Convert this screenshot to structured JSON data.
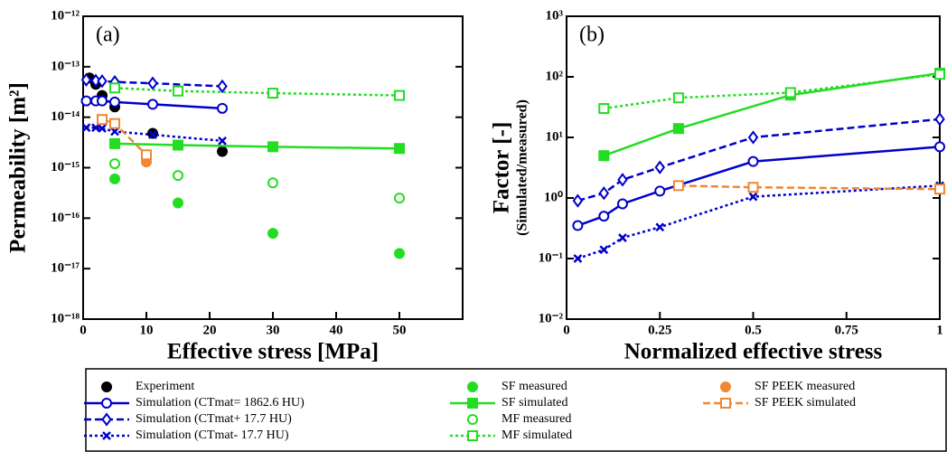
{
  "chart_data": [
    {
      "type": "line",
      "panel_label": "(a)",
      "x_label": "Effective stress [MPa]",
      "y_label": "Permeability [m²]",
      "log_y": true,
      "xlim": [
        0,
        60
      ],
      "xticks": [
        0,
        10,
        20,
        30,
        40,
        50
      ],
      "ylim": [
        1e-18,
        1e-12
      ],
      "yticks": [
        {
          "value": 1e-18,
          "label": "10⁻¹⁸"
        },
        {
          "value": 1e-17,
          "label": "10⁻¹⁷"
        },
        {
          "value": 1e-16,
          "label": "10⁻¹⁶"
        },
        {
          "value": 1e-15,
          "label": "10⁻¹⁵"
        },
        {
          "value": 1e-14,
          "label": "10⁻¹⁴"
        },
        {
          "value": 1e-13,
          "label": "10⁻¹³"
        },
        {
          "value": 1e-12,
          "label": "10⁻¹²"
        }
      ],
      "series": [
        {
          "name": "Experiment",
          "color": "#000000",
          "marker": "circle",
          "filled": true,
          "line": "none",
          "x": [
            1,
            2,
            3,
            5,
            11,
            22
          ],
          "values": [
            6e-14,
            4.5e-14,
            2.7e-14,
            1.6e-14,
            4.8e-15,
            2.1e-15
          ]
        },
        {
          "name": "Simulation (CTmat= 1862.6 HU)",
          "color": "#0000cc",
          "marker": "circle",
          "filled": false,
          "line": "solid",
          "x": [
            0.5,
            2,
            3,
            5,
            11,
            22
          ],
          "values": [
            2.1e-14,
            2.1e-14,
            2.1e-14,
            2e-14,
            1.8e-14,
            1.5e-14
          ]
        },
        {
          "name": "Simulation (CTmat+ 17.7 HU)",
          "color": "#0000cc",
          "marker": "diamond",
          "filled": false,
          "line": "dashed",
          "x": [
            0.5,
            2,
            3,
            5,
            11,
            22
          ],
          "values": [
            5.5e-14,
            5.3e-14,
            5.2e-14,
            5e-14,
            4.7e-14,
            4.1e-14
          ]
        },
        {
          "name": "Simulation (CTmat- 17.7 HU)",
          "color": "#0000cc",
          "marker": "x",
          "filled": false,
          "line": "dotted",
          "x": [
            0.5,
            2,
            3,
            5,
            11,
            22
          ],
          "values": [
            6.2e-15,
            6.2e-15,
            6e-15,
            5.2e-15,
            4.5e-15,
            3.4e-15
          ]
        },
        {
          "name": "SF measured",
          "color": "#22dd22",
          "marker": "circle",
          "filled": true,
          "line": "none",
          "x": [
            5,
            15,
            30,
            50
          ],
          "values": [
            6e-16,
            2e-16,
            5e-17,
            2e-17
          ]
        },
        {
          "name": "SF simulated",
          "color": "#22dd22",
          "marker": "square",
          "filled": true,
          "line": "solid",
          "x": [
            5,
            15,
            30,
            50
          ],
          "values": [
            3e-15,
            2.8e-15,
            2.6e-15,
            2.4e-15
          ]
        },
        {
          "name": "MF measured",
          "color": "#22dd22",
          "marker": "circle",
          "filled": false,
          "line": "none",
          "x": [
            5,
            15,
            30,
            50
          ],
          "values": [
            1.2e-15,
            7e-16,
            5e-16,
            2.5e-16
          ]
        },
        {
          "name": "MF simulated",
          "color": "#22dd22",
          "marker": "square",
          "filled": false,
          "line": "dotted",
          "x": [
            5,
            15,
            30,
            50
          ],
          "values": [
            3.8e-14,
            3.3e-14,
            3e-14,
            2.7e-14
          ]
        },
        {
          "name": "SF PEEK measured",
          "color": "#ee8833",
          "marker": "circle",
          "filled": true,
          "line": "none",
          "x": [
            10
          ],
          "values": [
            1.3e-15
          ]
        },
        {
          "name": "SF PEEK simulated",
          "color": "#ee8833",
          "marker": "square",
          "filled": false,
          "line": "dashed",
          "x": [
            3,
            5,
            10
          ],
          "values": [
            9e-15,
            7.5e-15,
            1.8e-15
          ]
        }
      ]
    },
    {
      "type": "line",
      "panel_label": "(b)",
      "x_label": "Normalized effective stress",
      "y_label": "Factor [-]",
      "y_sublabel": "(Simulated/measured)",
      "log_y": true,
      "xlim": [
        0,
        1
      ],
      "xticks": [
        0,
        0.25,
        0.5,
        0.75,
        1
      ],
      "ylim": [
        0.01,
        1000
      ],
      "yticks": [
        {
          "value": 0.01,
          "label": "10⁻²"
        },
        {
          "value": 0.1,
          "label": "10⁻¹"
        },
        {
          "value": 1,
          "label": "10⁰"
        },
        {
          "value": 10,
          "label": "10¹"
        },
        {
          "value": 100,
          "label": "10²"
        },
        {
          "value": 1000,
          "label": "10³"
        }
      ],
      "series": [
        {
          "name": "Simulation (CTmat= 1862.6 HU)",
          "color": "#0000cc",
          "marker": "circle",
          "filled": false,
          "line": "solid",
          "x": [
            0.03,
            0.1,
            0.15,
            0.25,
            0.5,
            1
          ],
          "values": [
            0.35,
            0.5,
            0.8,
            1.3,
            4,
            7
          ]
        },
        {
          "name": "Simulation (CTmat+ 17.7 HU)",
          "color": "#0000cc",
          "marker": "diamond",
          "filled": false,
          "line": "dashed",
          "x": [
            0.03,
            0.1,
            0.15,
            0.25,
            0.5,
            1
          ],
          "values": [
            0.9,
            1.2,
            2,
            3.2,
            10,
            20
          ]
        },
        {
          "name": "Simulation (CTmat- 17.7 HU)",
          "color": "#0000cc",
          "marker": "x",
          "filled": false,
          "line": "dotted",
          "x": [
            0.03,
            0.1,
            0.15,
            0.25,
            0.5,
            1
          ],
          "values": [
            0.1,
            0.14,
            0.22,
            0.33,
            1.05,
            1.6
          ]
        },
        {
          "name": "SF simulated",
          "color": "#22dd22",
          "marker": "square",
          "filled": true,
          "line": "solid",
          "x": [
            0.1,
            0.3,
            0.6,
            1
          ],
          "values": [
            5,
            14,
            50,
            115
          ]
        },
        {
          "name": "MF simulated",
          "color": "#22dd22",
          "marker": "square",
          "filled": false,
          "line": "dotted",
          "x": [
            0.1,
            0.3,
            0.6,
            1
          ],
          "values": [
            30,
            45,
            55,
            110
          ]
        },
        {
          "name": "SF PEEK simulated",
          "color": "#ee8833",
          "marker": "square",
          "filled": false,
          "line": "dashed",
          "x": [
            0.3,
            0.5,
            1
          ],
          "values": [
            1.6,
            1.5,
            1.4
          ]
        }
      ]
    }
  ]
}
